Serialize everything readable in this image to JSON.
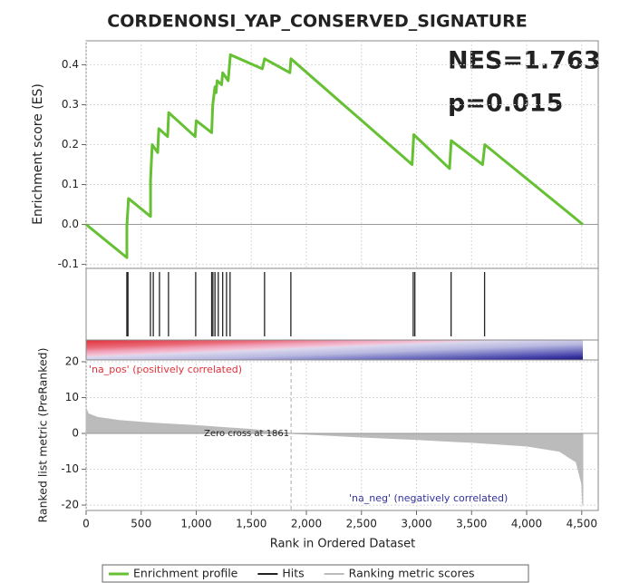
{
  "chart_data": [
    {
      "type": "line",
      "title": "CORDENONSI_YAP_CONSERVED_SIGNATURE",
      "annotations": [
        "NES=1.763",
        "p=0.015"
      ],
      "ylabel": "Enrichment score (ES)",
      "xlim": [
        0,
        4650
      ],
      "xticks": [
        0,
        500,
        {
          "value": 1000,
          "label": "1,000"
        },
        {
          "value": 1500,
          "label": "1,500"
        },
        {
          "value": 2000,
          "label": "2,000"
        },
        {
          "value": 2500,
          "label": "2,500"
        },
        {
          "value": 3000,
          "label": "3,000"
        },
        {
          "value": 3500,
          "label": "3,500"
        },
        {
          "value": 4000,
          "label": "4,000"
        },
        {
          "value": 4500,
          "label": "4,500"
        }
      ],
      "ylim": [
        -0.11,
        0.46
      ],
      "yticks": [
        -0.1,
        {
          "value": 0,
          "label": "0.0"
        },
        0.1,
        0.2,
        0.3,
        0.4
      ],
      "grid": true,
      "series": [
        {
          "name": "Enrichment profile",
          "color": "#66c033",
          "x": [
            0,
            370,
            370,
            385,
            585,
            585,
            600,
            650,
            660,
            740,
            750,
            990,
            1000,
            1140,
            1150,
            1170,
            1180,
            1190,
            1230,
            1240,
            1290,
            1310,
            1600,
            1620,
            1850,
            1860,
            2960,
            2975,
            3300,
            3315,
            3600,
            3620,
            4510
          ],
          "values": [
            0,
            -0.083,
            -0.005,
            0.065,
            0.02,
            0.11,
            0.2,
            0.18,
            0.24,
            0.22,
            0.28,
            0.22,
            0.26,
            0.23,
            0.3,
            0.345,
            0.33,
            0.36,
            0.35,
            0.38,
            0.36,
            0.425,
            0.39,
            0.415,
            0.38,
            0.415,
            0.15,
            0.225,
            0.14,
            0.21,
            0.15,
            0.2,
            0
          ]
        }
      ]
    },
    {
      "type": "rug",
      "xlim": [
        0,
        4650
      ],
      "series": [
        {
          "name": "Hits",
          "color": "#222222",
          "values": [
            370,
            380,
            584,
            610,
            666,
            748,
            995,
            1140,
            1151,
            1170,
            1200,
            1240,
            1275,
            1307,
            1620,
            1859,
            2970,
            2985,
            3314,
            3618
          ]
        }
      ]
    },
    {
      "type": "area",
      "ylabel": "Ranked list metric (PreRanked)",
      "xlabel": "Rank in Ordered Dataset",
      "pos_label": "'na_pos' (positively correlated)",
      "neg_label": "'na_neg' (negatively correlated)",
      "zero_cross": {
        "value": 1861,
        "label": "Zero cross at 1861"
      },
      "xlim": [
        0,
        4650
      ],
      "xticks": [
        0,
        500,
        {
          "value": 1000,
          "label": "1,000"
        },
        {
          "value": 1500,
          "label": "1,500"
        },
        {
          "value": 2000,
          "label": "2,000"
        },
        {
          "value": 2500,
          "label": "2,500"
        },
        {
          "value": 3000,
          "label": "3,000"
        },
        {
          "value": 3500,
          "label": "3,500"
        },
        {
          "value": 4000,
          "label": "4,000"
        },
        {
          "value": 4500,
          "label": "4,500"
        }
      ],
      "ylim": [
        -21.5,
        20.5
      ],
      "yticks": [
        -20,
        -10,
        0,
        10,
        20
      ],
      "grid": true,
      "series": [
        {
          "name": "Ranking metric scores",
          "color": "#bbbbbb",
          "x": [
            0,
            20,
            100,
            300,
            600,
            1000,
            1500,
            1861,
            2500,
            3000,
            3500,
            4000,
            4300,
            4450,
            4500,
            4510
          ],
          "values": [
            7,
            5.5,
            4.5,
            3.6,
            2.9,
            2.2,
            1.1,
            0,
            -1,
            -1.7,
            -2.5,
            -3.5,
            -5,
            -8,
            -14,
            -20
          ]
        }
      ]
    }
  ]
}
